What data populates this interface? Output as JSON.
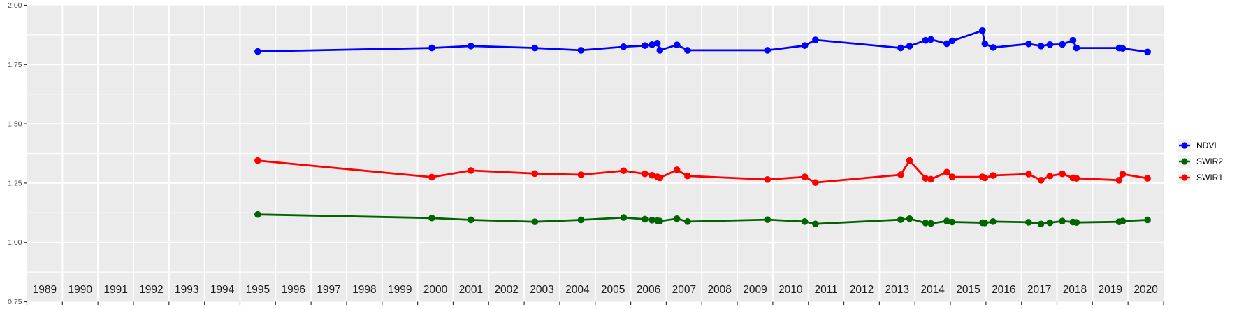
{
  "chart_data": {
    "type": "line",
    "title": "",
    "xlabel": "",
    "ylabel": "",
    "x_domain": [
      1989,
      2021
    ],
    "y_domain": [
      0.75,
      2.0
    ],
    "y_tick_labels": [
      "2.00",
      "1.75",
      "1.50",
      "1.25",
      "1.00",
      "0.75"
    ],
    "y_minor_gridlines": [
      1.875,
      1.625,
      1.375,
      1.125,
      0.875
    ],
    "y_major_gridlines": [
      1.75,
      1.5,
      1.25,
      1.0
    ],
    "x_year_labels": [
      "1989",
      "1990",
      "1991",
      "1992",
      "1993",
      "1994",
      "1995",
      "1996",
      "1997",
      "1998",
      "1999",
      "2000",
      "2001",
      "2002",
      "2003",
      "2004",
      "2005",
      "2006",
      "2007",
      "2008",
      "2009",
      "2010",
      "2011",
      "2012",
      "2013",
      "2014",
      "2015",
      "2016",
      "2017",
      "2018",
      "2019",
      "2020"
    ],
    "grid": true,
    "legend_position": "right",
    "x": [
      1995.5,
      2000.4,
      2001.5,
      2003.3,
      2004.6,
      2005.8,
      2006.4,
      2006.6,
      2006.75,
      2006.82,
      2007.3,
      2007.6,
      2009.85,
      2010.9,
      2011.2,
      2013.6,
      2013.85,
      2014.3,
      2014.45,
      2014.9,
      2015.05,
      2015.9,
      2015.97,
      2016.2,
      2017.2,
      2017.55,
      2017.8,
      2018.15,
      2018.45,
      2018.55,
      2019.75,
      2019.85,
      2020.55
    ],
    "series": [
      {
        "name": "NDVI",
        "color": "#0000ff",
        "values": [
          1.805,
          1.82,
          1.828,
          1.82,
          1.81,
          1.825,
          1.83,
          1.834,
          1.84,
          1.81,
          1.833,
          1.81,
          1.81,
          1.83,
          1.854,
          1.82,
          1.828,
          1.852,
          1.856,
          1.838,
          1.85,
          1.893,
          1.838,
          1.822,
          1.837,
          1.828,
          1.834,
          1.835,
          1.852,
          1.82,
          1.82,
          1.818,
          1.803
        ]
      },
      {
        "name": "SWIR2",
        "color": "#006400",
        "values": [
          1.118,
          1.103,
          1.095,
          1.087,
          1.095,
          1.105,
          1.098,
          1.094,
          1.092,
          1.09,
          1.1,
          1.088,
          1.096,
          1.088,
          1.078,
          1.096,
          1.1,
          1.082,
          1.08,
          1.09,
          1.086,
          1.083,
          1.082,
          1.088,
          1.085,
          1.078,
          1.083,
          1.09,
          1.086,
          1.084,
          1.087,
          1.09,
          1.095
        ]
      },
      {
        "name": "SWIR1",
        "color": "#ff0000",
        "values": [
          1.345,
          1.275,
          1.303,
          1.29,
          1.285,
          1.302,
          1.289,
          1.283,
          1.276,
          1.272,
          1.306,
          1.28,
          1.265,
          1.276,
          1.252,
          1.285,
          1.345,
          1.27,
          1.266,
          1.296,
          1.276,
          1.276,
          1.272,
          1.282,
          1.288,
          1.262,
          1.28,
          1.289,
          1.272,
          1.27,
          1.262,
          1.288,
          1.27
        ]
      }
    ],
    "style": {
      "panel_bg": "#ebebeb",
      "grid_color": "#ffffff",
      "tick_color": "#333333",
      "y_label_color": "#4d4d4d",
      "year_label_color": "#1a1a1a",
      "legend_key_bg": "#f2f2f2"
    }
  }
}
